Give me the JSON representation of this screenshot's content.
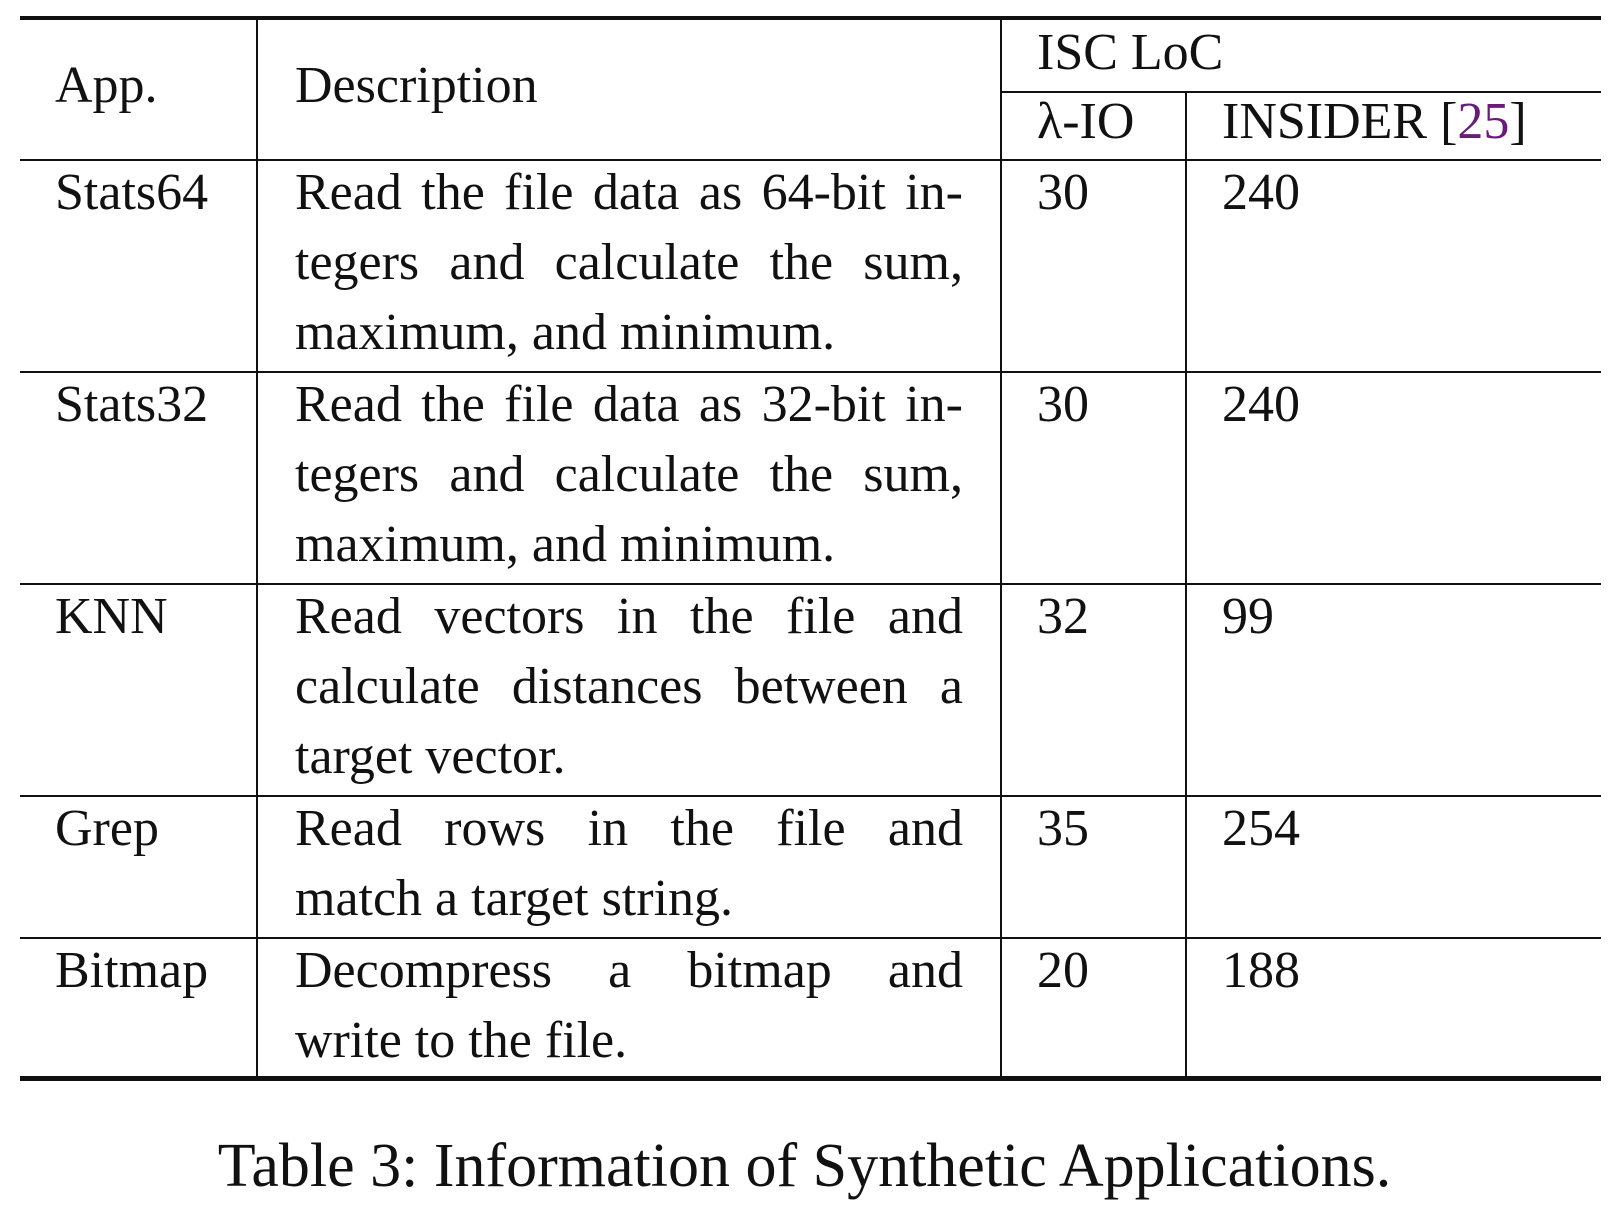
{
  "table": {
    "header": {
      "app": "App.",
      "description": "Description",
      "group": "ISC LoC",
      "lambda_io": "λ-IO",
      "insider_prefix": "INSIDER [",
      "insider_cite": "25",
      "insider_suffix": "]"
    },
    "rows": [
      {
        "app": "Stats64",
        "description_lines": [
          "Read the file data as 64-bit in-",
          "tegers and calculate the sum,",
          "maximum, and minimum."
        ],
        "lambda_io": "30",
        "insider": "240"
      },
      {
        "app": "Stats32",
        "description_lines": [
          "Read the file data as 32-bit in-",
          "tegers and calculate the sum,",
          "maximum, and minimum."
        ],
        "lambda_io": "30",
        "insider": "240"
      },
      {
        "app": "KNN",
        "description_lines": [
          "Read vectors in the file and",
          "calculate distances between a",
          "target vector."
        ],
        "lambda_io": "32",
        "insider": "99"
      },
      {
        "app": "Grep",
        "description_lines": [
          "Read rows in the file and",
          "match a target string."
        ],
        "lambda_io": "35",
        "insider": "254"
      },
      {
        "app": "Bitmap",
        "description_lines": [
          "Decompress a bitmap and",
          "write to the file."
        ],
        "lambda_io": "20",
        "insider": "188"
      }
    ]
  },
  "caption": "Table 3: Information of Synthetic Applications.",
  "colors": {
    "citation": "#6a1b7a",
    "text": "#111111"
  }
}
